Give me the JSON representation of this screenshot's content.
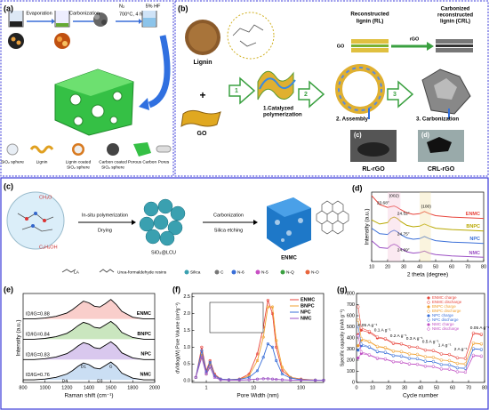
{
  "panels": {
    "a": {
      "label": "(a)",
      "steps": [
        "Evaporation",
        "Carbonization"
      ],
      "gas": "N₂",
      "condition": "700°C, 4 h",
      "etch": "5% HF",
      "legend": [
        [
          "SiO₂ sphere"
        ],
        [
          "Lignin"
        ],
        [
          "Lignin coated",
          "SiO₂ sphere"
        ],
        [
          "Carbon coated",
          "SiO₂ sphere"
        ],
        [
          "Porous Carbon"
        ],
        [
          "Pores"
        ]
      ]
    },
    "b": {
      "label": "(b)",
      "lignin": "Lignin",
      "plus": "+",
      "go": "GO",
      "step_numbers": [
        "1",
        "2",
        "3"
      ],
      "steps": [
        [
          "1.Catalyzed",
          "polymerization"
        ],
        [
          "2. Assembly"
        ],
        [
          "3. Carbonization"
        ]
      ],
      "rl": [
        "Reconstructed",
        "lignin (RL)"
      ],
      "crl": [
        "Carbonized",
        "reconstructed",
        "lignin (CRL)"
      ],
      "go_layer": "GO",
      "rgo_layer": "rGO",
      "photos": [
        {
          "label": "(c)",
          "name": "RL-rGO"
        },
        {
          "label": "(d)",
          "name": "CRL-rGO"
        }
      ]
    },
    "c": {
      "label": "(c)",
      "groups": [
        "CH₃O",
        "C₂H₅OH"
      ],
      "step1": [
        "In-situ polymerization",
        "Drying"
      ],
      "intermediate": "SiO₂@LCU",
      "step2": [
        "Carbonization",
        "Silica etching"
      ],
      "product": "ENMC",
      "legend": [
        "LA",
        "Urea-formaldehyde resins",
        "Silica",
        "C",
        "N-6",
        "N-5",
        "N-Q",
        "N-O"
      ]
    },
    "d": {
      "label": "(d)",
      "xlabel": "2 theta (degree)",
      "ylabel": "Intensity (a.u.)",
      "xlim": [
        10,
        80
      ],
      "ylim": [
        0,
        10
      ],
      "xticks": [
        10,
        20,
        30,
        40,
        50,
        60,
        70,
        80
      ],
      "annotations": [
        "(002)",
        "(100)",
        "23.68°",
        "24.52°",
        "24.75°",
        "24.69°"
      ],
      "x": [
        10,
        15,
        20,
        22,
        24,
        26,
        28,
        32,
        36,
        40,
        43,
        46,
        50,
        60,
        70,
        80
      ],
      "series": [
        {
          "name": "ENMC",
          "color": "#e8453c",
          "values": [
            9.5,
            8.2,
            7.8,
            7.9,
            8.0,
            7.8,
            7.5,
            7.0,
            6.8,
            6.9,
            7.2,
            6.9,
            6.6,
            6.4,
            6.3,
            6.2
          ]
        },
        {
          "name": "BNPC",
          "color": "#b8a800",
          "values": [
            6.0,
            5.4,
            5.6,
            6.2,
            6.4,
            6.2,
            5.8,
            5.2,
            5.0,
            5.1,
            5.4,
            5.1,
            4.8,
            4.6,
            4.5,
            4.4
          ]
        },
        {
          "name": "NPC",
          "color": "#3a6fd8",
          "values": [
            4.8,
            4.0,
            3.9,
            4.3,
            4.5,
            4.3,
            3.9,
            3.4,
            3.2,
            3.3,
            3.6,
            3.3,
            3.0,
            2.8,
            2.7,
            2.6
          ]
        },
        {
          "name": "NMC",
          "color": "#9b4fc4",
          "values": [
            3.0,
            2.0,
            1.9,
            2.3,
            2.5,
            2.3,
            1.9,
            1.4,
            1.2,
            1.3,
            1.5,
            1.2,
            1.0,
            0.8,
            0.7,
            0.6
          ]
        }
      ]
    },
    "e": {
      "label": "(e)",
      "xlabel": "Raman shift (cm⁻¹)",
      "ylabel": "Intensity (a.u.)",
      "xlim": [
        800,
        2000
      ],
      "ylim": [
        0,
        10.5
      ],
      "xticks": [
        800,
        1000,
        1200,
        1400,
        1600,
        1800,
        2000
      ],
      "ratio_prefix": "ID/IG=",
      "ratios": [
        0.88,
        0.84,
        0.83,
        0.76
      ],
      "bands": [
        "D4",
        "D1",
        "D3",
        "G"
      ],
      "x": [
        800,
        900,
        1000,
        1100,
        1200,
        1250,
        1300,
        1350,
        1400,
        1450,
        1500,
        1550,
        1600,
        1650,
        1700,
        1800,
        1900,
        2000
      ],
      "series": [
        {
          "name": "ENMC",
          "color": "#f4a6a0",
          "values": [
            7.5,
            7.5,
            7.6,
            7.8,
            8.2,
            8.6,
            9.1,
            9.6,
            9.4,
            9.0,
            8.9,
            9.3,
            9.8,
            9.2,
            8.4,
            7.7,
            7.5,
            7.5
          ]
        },
        {
          "name": "BNPC",
          "color": "#9fd18b",
          "values": [
            5.1,
            5.1,
            5.2,
            5.4,
            5.8,
            6.2,
            6.7,
            7.1,
            6.9,
            6.5,
            6.4,
            6.8,
            7.2,
            6.7,
            5.9,
            5.3,
            5.1,
            5.1
          ]
        },
        {
          "name": "NPC",
          "color": "#b99be0",
          "values": [
            2.7,
            2.7,
            2.8,
            3.0,
            3.4,
            3.8,
            4.3,
            4.7,
            4.5,
            4.1,
            4.0,
            4.4,
            4.8,
            4.3,
            3.5,
            2.9,
            2.7,
            2.7
          ]
        },
        {
          "name": "NMC",
          "color": "#9fc3ea",
          "values": [
            0.3,
            0.3,
            0.4,
            0.6,
            1.0,
            1.4,
            1.9,
            2.3,
            2.1,
            1.7,
            1.6,
            2.0,
            2.4,
            1.9,
            1.1,
            0.5,
            0.3,
            0.3
          ]
        }
      ]
    },
    "f": {
      "label": "(f)",
      "xlabel": "Pore Width (nm)",
      "ylabel": "dV/dlog(W) Pore Volume (cm³g⁻¹)",
      "xlog": true,
      "xlim": [
        0.5,
        300
      ],
      "ylim": [
        -0.05,
        2.6
      ],
      "xticks": [
        1,
        10,
        100
      ],
      "yticks": [
        {
          "value": 0,
          "label": "0.0"
        },
        0.5,
        {
          "value": 1,
          "label": "1.0"
        },
        1.5,
        {
          "value": 2,
          "label": "2.0"
        },
        2.5
      ],
      "x": [
        0.6,
        0.8,
        1.0,
        1.2,
        1.5,
        2,
        3,
        5,
        8,
        12,
        16,
        20,
        25,
        30,
        40,
        60,
        100,
        200,
        300
      ],
      "series": [
        {
          "name": "ENMC",
          "color": "#e8453c",
          "values": [
            0.1,
            1.0,
            0.3,
            0.6,
            0.2,
            0.05,
            0.03,
            0.05,
            0.2,
            0.8,
            1.6,
            2.4,
            2.0,
            1.0,
            0.3,
            0.1,
            0.05,
            0.02,
            0.02
          ]
        },
        {
          "name": "BNPC",
          "color": "#f0a030",
          "values": [
            0.1,
            0.8,
            0.2,
            0.5,
            0.15,
            0.04,
            0.03,
            0.04,
            0.15,
            0.6,
            1.3,
            2.2,
            2.2,
            1.2,
            0.4,
            0.1,
            0.04,
            0.02,
            0.02
          ]
        },
        {
          "name": "NPC",
          "color": "#3a6fd8",
          "values": [
            0.1,
            0.9,
            0.25,
            0.55,
            0.15,
            0.05,
            0.03,
            0.04,
            0.1,
            0.3,
            0.7,
            1.1,
            1.0,
            0.6,
            0.2,
            0.08,
            0.03,
            0.02,
            0.02
          ]
        },
        {
          "name": "NMC",
          "color": "#9b4fc4",
          "values": [
            0.1,
            0.7,
            0.2,
            0.4,
            0.1,
            0.03,
            0.02,
            0.02,
            0.03,
            0.05,
            0.06,
            0.06,
            0.05,
            0.04,
            0.03,
            0.02,
            0.02,
            0.01,
            0.01
          ]
        }
      ]
    },
    "g": {
      "label": "(g)",
      "xlabel": "Cycle number",
      "ylabel": "Specific capacity (mAh g⁻¹)",
      "xlim": [
        0,
        80
      ],
      "ylim": [
        0,
        800
      ],
      "xticks": [
        0,
        10,
        20,
        30,
        40,
        50,
        60,
        70,
        80
      ],
      "yticks": [
        0,
        100,
        200,
        300,
        400,
        500,
        600,
        700,
        800
      ],
      "rates": [
        "0.05 A g⁻¹",
        "0.1 A g⁻¹",
        "0.2 A g⁻¹",
        "0.3 A g⁻¹",
        "0.5 A g⁻¹",
        "1 A g⁻¹",
        "2 A g⁻¹",
        "0.05 A g⁻¹"
      ],
      "x": [
        1,
        3,
        8,
        13,
        18,
        23,
        28,
        33,
        38,
        43,
        48,
        53,
        58,
        63,
        68,
        73,
        78
      ],
      "series": [
        {
          "name": "ENMC charge",
          "color": "#e8453c",
          "marker": "filled",
          "values": [
            430,
            470,
            450,
            400,
            390,
            350,
            345,
            320,
            315,
            290,
            285,
            255,
            250,
            220,
            215,
            440,
            430
          ]
        },
        {
          "name": "ENMC discharge",
          "color": "#e8453c",
          "marker": "open",
          "values": [
            680,
            490,
            460,
            410,
            395,
            355,
            348,
            323,
            317,
            292,
            287,
            257,
            252,
            222,
            217,
            445,
            435
          ]
        },
        {
          "name": "BNPC charge",
          "color": "#f0a030",
          "marker": "filled",
          "values": [
            330,
            380,
            365,
            320,
            310,
            280,
            275,
            255,
            250,
            230,
            225,
            200,
            195,
            170,
            165,
            350,
            345
          ]
        },
        {
          "name": "BNPC discharge",
          "color": "#f0a030",
          "marker": "open",
          "values": [
            560,
            395,
            370,
            325,
            315,
            283,
            278,
            258,
            253,
            232,
            227,
            202,
            197,
            172,
            167,
            355,
            348
          ]
        },
        {
          "name": "NPC charge",
          "color": "#3a6fd8",
          "marker": "filled",
          "values": [
            290,
            330,
            315,
            275,
            268,
            240,
            235,
            215,
            212,
            190,
            186,
            160,
            157,
            130,
            126,
            300,
            295
          ]
        },
        {
          "name": "NPC discharge",
          "color": "#3a6fd8",
          "marker": "open",
          "values": [
            500,
            345,
            320,
            280,
            272,
            243,
            238,
            218,
            214,
            192,
            188,
            162,
            159,
            132,
            128,
            305,
            298
          ]
        },
        {
          "name": "NMC charge",
          "color": "#c04fc4",
          "marker": "filled",
          "values": [
            220,
            260,
            245,
            215,
            208,
            185,
            180,
            165,
            162,
            145,
            142,
            120,
            118,
            95,
            92,
            240,
            235
          ]
        },
        {
          "name": "NMC discharge",
          "color": "#c04fc4",
          "marker": "open",
          "values": [
            420,
            275,
            250,
            220,
            212,
            188,
            183,
            168,
            164,
            147,
            144,
            122,
            120,
            97,
            94,
            245,
            238
          ]
        }
      ]
    }
  }
}
